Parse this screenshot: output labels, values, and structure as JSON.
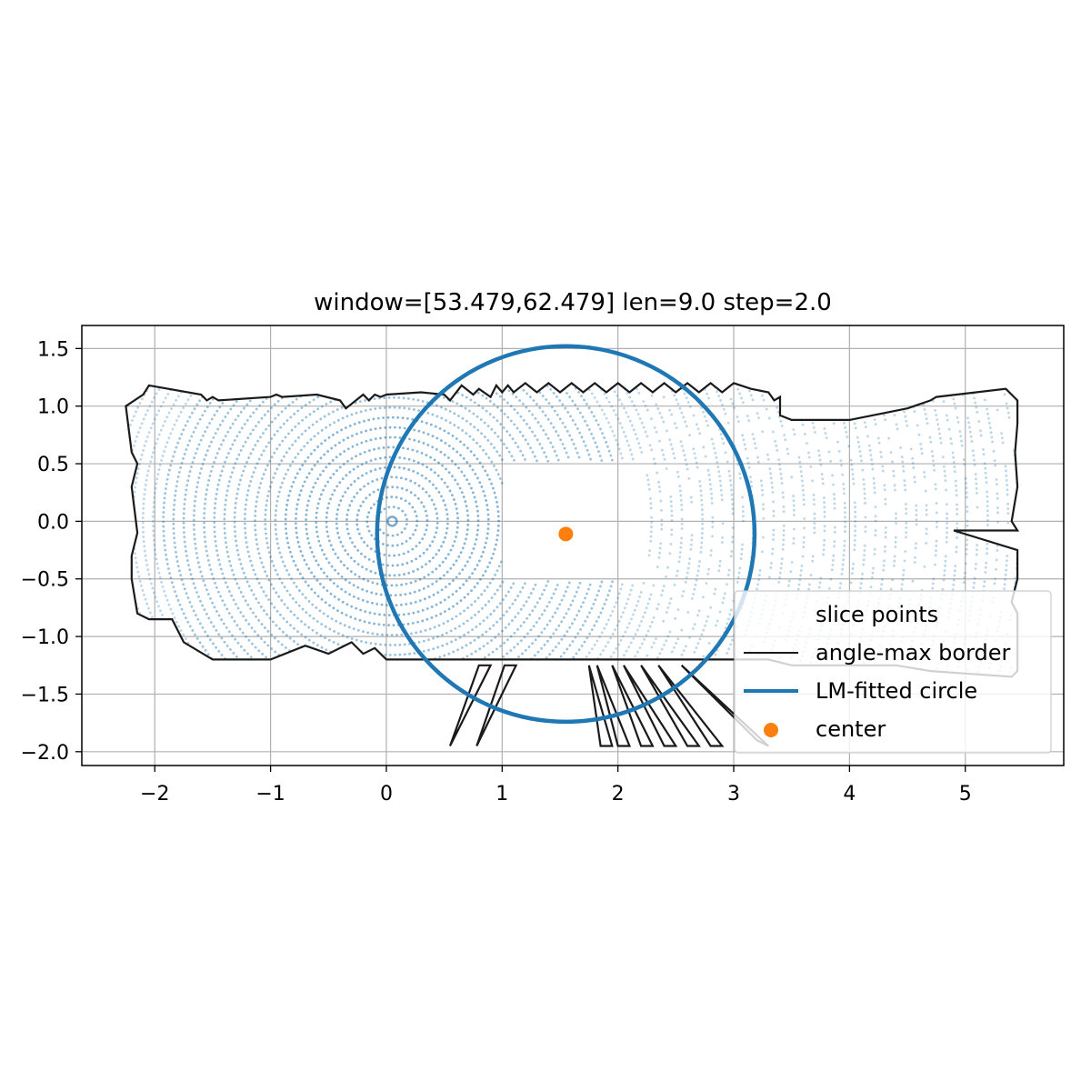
{
  "chart_data": {
    "type": "scatter",
    "title": "window=[53.479,62.479] len=9.0  step=2.0",
    "xlabel": "",
    "ylabel": "",
    "xlim": [
      -2.63,
      5.85
    ],
    "ylim": [
      -2.12,
      1.7
    ],
    "x_ticks": [
      -2,
      -1,
      0,
      1,
      2,
      3,
      4,
      5
    ],
    "y_ticks": [
      1.5,
      1.0,
      0.5,
      0.0,
      -0.5,
      -1.0,
      -1.5,
      -2.0
    ],
    "x_tick_labels": [
      "−2",
      "−1",
      "0",
      "1",
      "2",
      "3",
      "4",
      "5"
    ],
    "y_tick_labels": [
      "1.5",
      "1.0",
      "0.5",
      "0.0",
      "−0.5",
      "−1.0",
      "−1.5",
      "−2.0"
    ],
    "grid": true,
    "legend_position": "lower-right",
    "colors": {
      "slice_points": "#1f77b4",
      "border": "#1a1a1a",
      "circle": "#1f77b4",
      "center": "#ff7f0e",
      "grid": "#b0b0b0"
    },
    "series": [
      {
        "name": "slice points",
        "kind": "scatter",
        "pattern": "concentric rings around (0.05, 0.0) sampled within the bounding border; x from -2.1 to 5.4, y from -1.25 to 1.15"
      },
      {
        "name": "angle-max border",
        "kind": "line",
        "x": [
          -2.1,
          -2.05,
          -1.6,
          -1.55,
          -1.5,
          -1.45,
          -1.0,
          -0.95,
          -0.9,
          -0.6,
          -0.4,
          -0.35,
          -0.2,
          -0.15,
          -0.1,
          -0.05,
          0.0,
          0.3,
          0.5,
          0.55,
          0.65,
          0.75,
          0.8,
          0.9,
          0.95,
          1.0,
          1.05,
          1.1,
          1.2,
          1.3,
          1.4,
          1.5,
          1.6,
          1.7,
          1.8,
          1.9,
          2.0,
          2.1,
          2.2,
          2.3,
          2.4,
          2.5,
          2.6,
          2.7,
          2.8,
          2.9,
          3.0,
          3.15,
          3.3,
          3.35,
          3.4,
          3.4,
          3.45,
          3.5,
          4.0,
          4.5,
          4.7,
          4.75,
          5.35,
          5.45,
          5.45,
          5.43,
          5.45,
          5.4,
          5.45,
          4.9,
          5.45,
          5.45,
          5.4,
          5.45,
          5.45,
          5.4,
          4.7,
          4.4,
          4.0,
          3.5,
          3.3,
          3.0,
          2.8,
          2.6,
          2.4,
          2.2,
          2.0,
          1.8,
          1.6,
          1.4,
          1.2,
          1.0,
          0.8,
          0.6,
          0.4,
          0.2,
          0.0,
          -0.1,
          -0.2,
          -0.3,
          -0.5,
          -0.7,
          -1.0,
          -1.5,
          -1.75,
          -1.85,
          -2.05,
          -2.15,
          -2.2,
          -2.2,
          -2.15,
          -2.2,
          -2.15,
          -2.2,
          -2.25,
          -2.1
        ],
        "y": [
          1.1,
          1.18,
          1.1,
          1.05,
          1.08,
          1.05,
          1.08,
          1.1,
          1.08,
          1.1,
          1.05,
          0.98,
          1.1,
          1.05,
          1.1,
          1.08,
          1.1,
          1.12,
          1.1,
          1.05,
          1.18,
          1.1,
          1.15,
          1.08,
          1.18,
          1.12,
          1.18,
          1.12,
          1.2,
          1.12,
          1.2,
          1.12,
          1.2,
          1.12,
          1.2,
          1.12,
          1.2,
          1.12,
          1.2,
          1.12,
          1.2,
          1.12,
          1.2,
          1.12,
          1.2,
          1.12,
          1.2,
          1.15,
          1.12,
          1.05,
          1.08,
          0.92,
          0.9,
          0.88,
          0.88,
          0.98,
          1.05,
          1.08,
          1.15,
          1.05,
          0.85,
          0.6,
          0.3,
          0.0,
          -0.08,
          -0.08,
          -0.25,
          -0.5,
          -0.7,
          -0.8,
          -1.3,
          -1.35,
          -1.3,
          -1.25,
          -1.25,
          -1.25,
          -1.2,
          -1.2,
          -1.2,
          -1.2,
          -1.2,
          -1.2,
          -1.2,
          -1.2,
          -1.2,
          -1.2,
          -1.2,
          -1.2,
          -1.2,
          -1.2,
          -1.2,
          -1.2,
          -1.2,
          -1.1,
          -1.15,
          -1.05,
          -1.15,
          -1.08,
          -1.2,
          -1.2,
          -1.05,
          -0.85,
          -0.85,
          -0.8,
          -0.5,
          -0.3,
          -0.1,
          0.3,
          0.5,
          0.6,
          1.0,
          1.1
        ]
      },
      {
        "name": "LM-fitted circle",
        "kind": "circle",
        "center": [
          1.55,
          -0.11
        ],
        "radius": 1.63
      },
      {
        "name": "center",
        "kind": "scatter",
        "x": [
          1.55
        ],
        "y": [
          -0.11
        ]
      }
    ],
    "border_spikes": [
      {
        "x": [
          0.55,
          0.9,
          0.8,
          0.55
        ],
        "y": [
          -1.95,
          -1.25,
          -1.25,
          -1.95
        ]
      },
      {
        "x": [
          0.78,
          1.12,
          1.02,
          0.78
        ],
        "y": [
          -1.95,
          -1.25,
          -1.25,
          -1.95
        ]
      },
      {
        "x": [
          1.75,
          1.95,
          1.85,
          1.75
        ],
        "y": [
          -1.25,
          -1.95,
          -1.95,
          -1.25
        ]
      },
      {
        "x": [
          1.82,
          2.1,
          2.0,
          1.82
        ],
        "y": [
          -1.25,
          -1.95,
          -1.95,
          -1.25
        ]
      },
      {
        "x": [
          1.95,
          2.3,
          2.2,
          1.95
        ],
        "y": [
          -1.25,
          -1.95,
          -1.95,
          -1.25
        ]
      },
      {
        "x": [
          2.05,
          2.5,
          2.4,
          2.05
        ],
        "y": [
          -1.25,
          -1.95,
          -1.95,
          -1.25
        ]
      },
      {
        "x": [
          2.2,
          2.7,
          2.6,
          2.2
        ],
        "y": [
          -1.25,
          -1.95,
          -1.95,
          -1.25
        ]
      },
      {
        "x": [
          2.35,
          2.9,
          2.8,
          2.35
        ],
        "y": [
          -1.25,
          -1.95,
          -1.95,
          -1.25
        ]
      },
      {
        "x": [
          2.55,
          3.3,
          3.2,
          2.55
        ],
        "y": [
          -1.25,
          -1.95,
          -1.9,
          -1.25
        ]
      }
    ]
  }
}
